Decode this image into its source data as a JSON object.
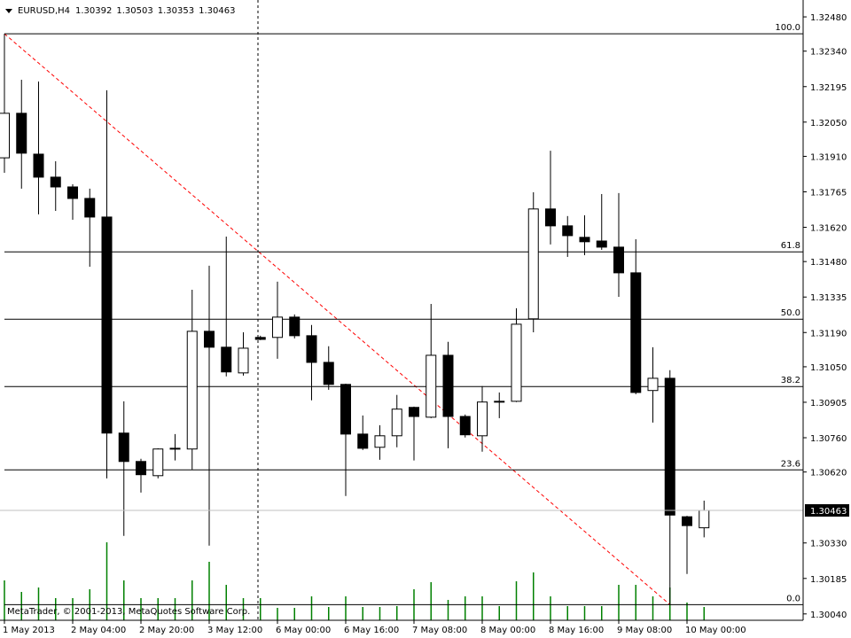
{
  "chart_data": {
    "type": "candlestick",
    "symbol": "EURUSD,H4",
    "watermark": "MetaTrader, © 2001-2013, MetaQuotes Software Corp.",
    "categories": [
      "1 May 2013",
      null,
      null,
      null,
      "2 May 04:00",
      null,
      null,
      null,
      "2 May 20:00",
      null,
      null,
      null,
      "3 May 12:00",
      null,
      null,
      null,
      "6 May 00:00",
      null,
      null,
      null,
      "6 May 16:00",
      null,
      null,
      null,
      "7 May 08:00",
      null,
      null,
      null,
      "8 May 00:00",
      null,
      null,
      null,
      "8 May 16:00",
      null,
      null,
      null,
      "9 May 08:00",
      null,
      null,
      null,
      "10 May 00:00",
      null
    ],
    "open": [
      1.31904,
      1.32086,
      1.31919,
      1.31825,
      1.31785,
      1.31738,
      1.31662,
      1.30779,
      1.30663,
      1.30605,
      1.30714,
      1.30714,
      1.31195,
      1.3113,
      1.31025,
      1.3117,
      1.3117,
      1.31253,
      1.31177,
      1.31068,
      1.30978,
      1.30775,
      1.30721,
      1.30768,
      1.30884,
      1.30844,
      1.31097,
      1.30847,
      1.30768,
      1.30909,
      1.30909,
      1.31246,
      1.31695,
      1.31626,
      1.31579,
      1.31564,
      1.31539,
      1.31434,
      1.30953,
      1.31003,
      1.30437,
      1.30392
    ],
    "high": [
      1.32411,
      1.32223,
      1.32216,
      1.3189,
      1.31796,
      1.31778,
      1.3218,
      1.30909,
      1.30674,
      1.30717,
      1.30775,
      1.31365,
      1.31463,
      1.31582,
      1.31191,
      1.31177,
      1.31398,
      1.31264,
      1.31221,
      1.31134,
      1.30981,
      1.30851,
      1.30811,
      1.30935,
      1.30887,
      1.31307,
      1.31152,
      1.30855,
      1.30971,
      1.30945,
      1.31289,
      1.31763,
      1.31933,
      1.31666,
      1.31669,
      1.31756,
      1.3176,
      1.31571,
      1.3113,
      1.31036,
      1.30441,
      1.30503
    ],
    "low": [
      1.31843,
      1.31778,
      1.31673,
      1.31687,
      1.31651,
      1.31459,
      1.30594,
      1.30359,
      1.30536,
      1.30594,
      1.30667,
      1.3063,
      1.30319,
      1.31011,
      1.31014,
      1.31159,
      1.31083,
      1.31166,
      1.30913,
      1.30956,
      1.30522,
      1.3071,
      1.3067,
      1.30721,
      1.30667,
      1.3084,
      1.30717,
      1.30761,
      1.30703,
      1.3084,
      1.30906,
      1.31191,
      1.3155,
      1.31499,
      1.31506,
      1.31528,
      1.31336,
      1.30938,
      1.30822,
      1.30078,
      1.30203,
      1.30353
    ],
    "close": [
      1.32086,
      1.31923,
      1.31825,
      1.31785,
      1.31738,
      1.31662,
      1.30779,
      1.30663,
      1.30609,
      1.30714,
      1.30717,
      1.31195,
      1.3113,
      1.31029,
      1.31126,
      1.31162,
      1.31253,
      1.31177,
      1.31068,
      1.30978,
      1.30775,
      1.30717,
      1.30768,
      1.30877,
      1.30847,
      1.31097,
      1.30847,
      1.30772,
      1.30906,
      1.30906,
      1.31224,
      1.31695,
      1.31626,
      1.31586,
      1.31561,
      1.31539,
      1.31434,
      1.30945,
      1.31003,
      1.30444,
      1.30401,
      1.30463
    ],
    "volume": [
      45,
      32,
      37,
      25,
      25,
      35,
      88,
      45,
      25,
      25,
      25,
      45,
      66,
      40,
      25,
      25,
      14,
      14,
      27,
      15,
      27,
      15,
      15,
      16,
      35,
      43,
      23,
      27,
      27,
      16,
      44,
      54,
      27,
      16,
      16,
      16,
      40,
      40,
      27,
      37,
      20,
      15
    ],
    "volume_color": "#008000",
    "ylim": [
      1.30014,
      1.32549
    ],
    "yticks": [
      {
        "value": 1.3248,
        "label": "1.32480"
      },
      {
        "value": 1.3234,
        "label": "1.32340"
      },
      1.32195,
      {
        "value": 1.3205,
        "label": "1.32050"
      },
      {
        "value": 1.3191,
        "label": "1.31910"
      },
      1.31765,
      {
        "value": 1.3162,
        "label": "1.31620"
      },
      {
        "value": 1.3148,
        "label": "1.31480"
      },
      1.31335,
      {
        "value": 1.3119,
        "label": "1.31190"
      },
      {
        "value": 1.3105,
        "label": "1.31050"
      },
      1.30905,
      {
        "value": 1.3076,
        "label": "1.30760"
      },
      {
        "value": 1.3062,
        "label": "1.30620"
      },
      {
        "value": 1.3033,
        "label": "1.30330"
      },
      1.30185,
      {
        "value": 1.3004,
        "label": "1.30040"
      }
    ],
    "fibonacci": {
      "levels": [
        100,
        61.8,
        50,
        38.2,
        23.6,
        0
      ],
      "labels": [
        "100.0",
        "61.8",
        "50.0",
        "38.2",
        "23.6",
        "0.0"
      ],
      "color": "#000000",
      "trend_color": "#ff0000"
    },
    "bull_color": "#ffffff",
    "bear_color": "#000000"
  }
}
